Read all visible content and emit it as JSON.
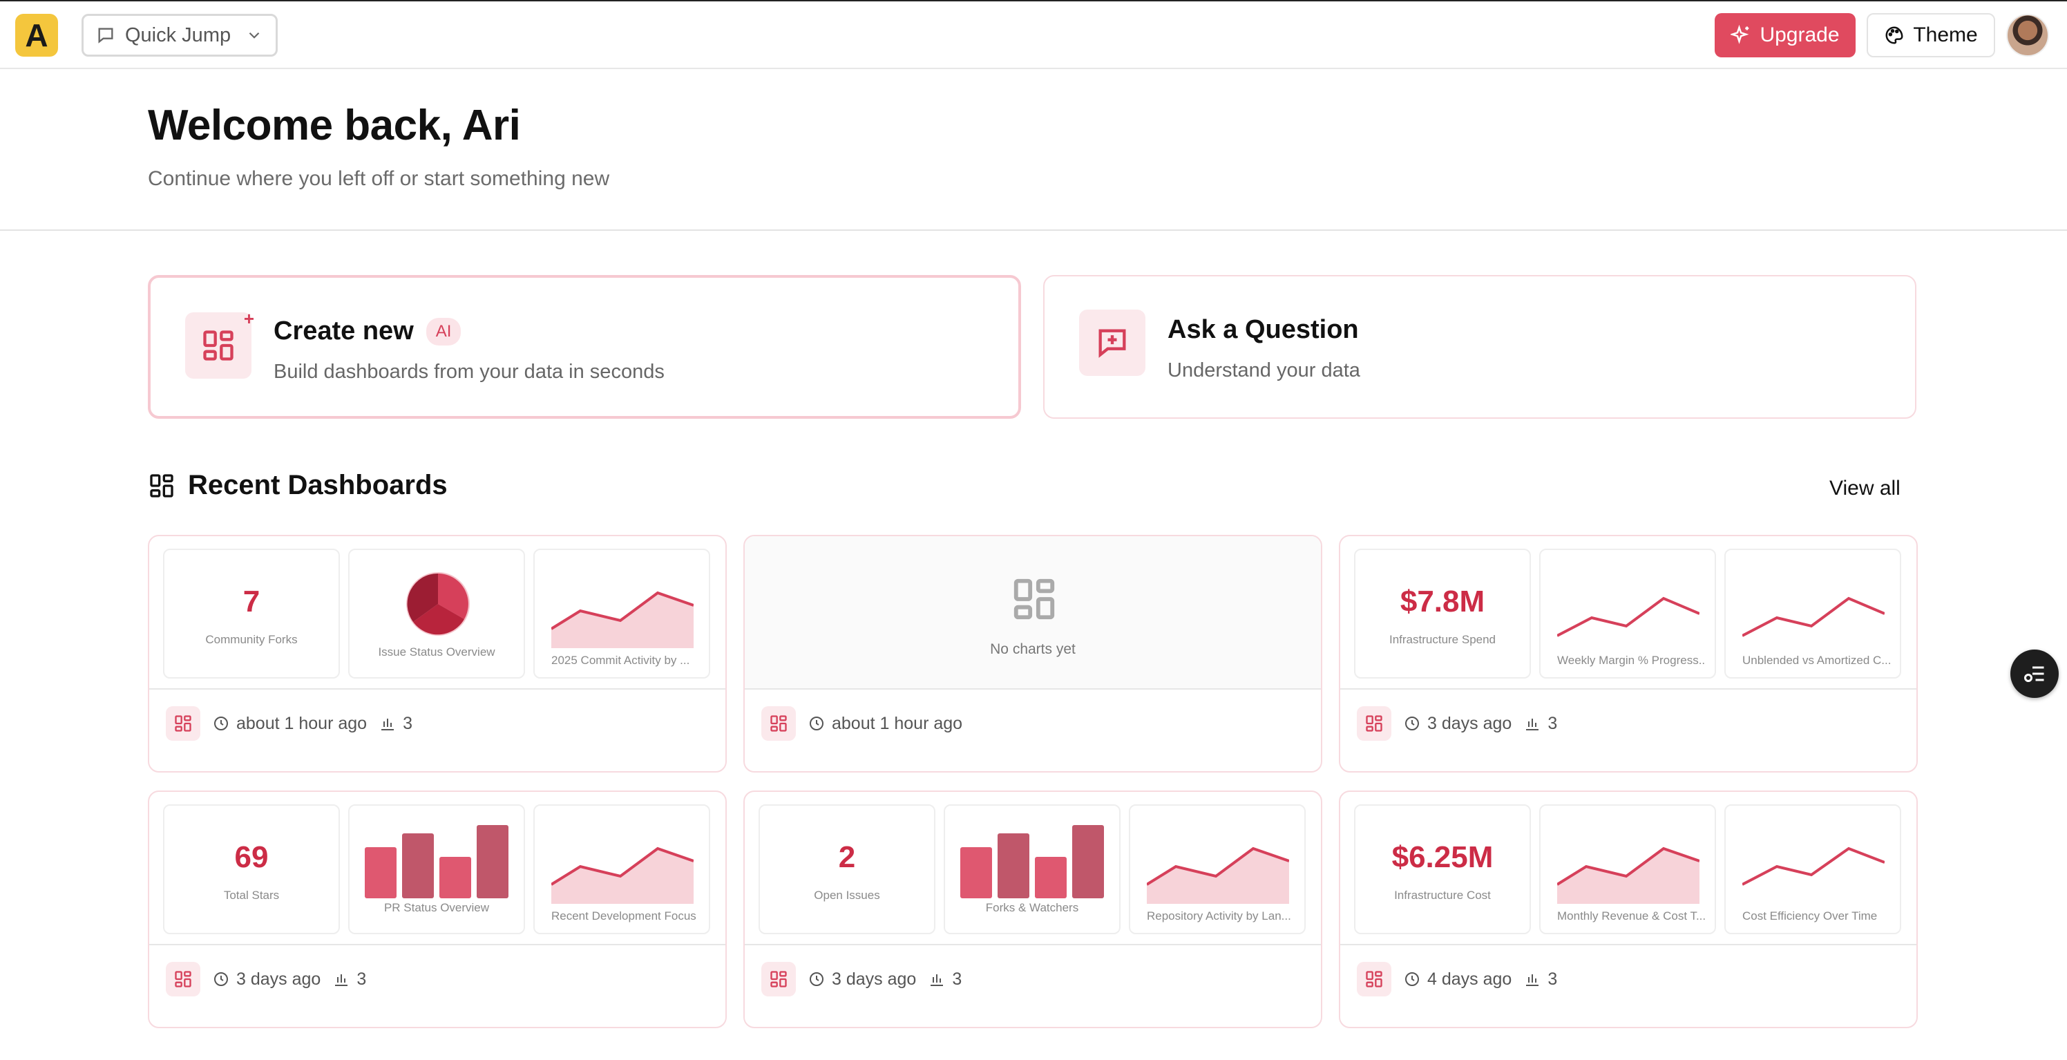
{
  "topbar": {
    "logo_letter": "A",
    "quick_jump_label": "Quick Jump",
    "upgrade_label": "Upgrade",
    "theme_label": "Theme"
  },
  "welcome": {
    "title": "Welcome back, Ari",
    "subtitle": "Continue where you left off or start something new"
  },
  "actions": {
    "create": {
      "title": "Create new",
      "badge": "AI",
      "subtitle": "Build dashboards from your data in seconds"
    },
    "ask": {
      "title": "Ask a Question",
      "subtitle": "Understand your data"
    }
  },
  "recent": {
    "title": "Recent Dashboards",
    "view_all": "View all",
    "dashboards": [
      {
        "tiles": [
          {
            "type": "kpi",
            "value": "7",
            "label": "Community Forks"
          },
          {
            "type": "pie",
            "label": "Issue Status Overview"
          },
          {
            "type": "area",
            "label": "2025 Commit Activity by ..."
          }
        ],
        "time": "about 1 hour ago",
        "count": "3"
      },
      {
        "empty_text": "No charts yet",
        "time": "about 1 hour ago"
      },
      {
        "tiles": [
          {
            "type": "kpi",
            "value": "$7.8M",
            "label": "Infrastructure Spend"
          },
          {
            "type": "line",
            "label": "Weekly Margin % Progress..."
          },
          {
            "type": "line",
            "label": "Unblended vs Amortized C..."
          }
        ],
        "time": "3 days ago",
        "count": "3"
      },
      {
        "tiles": [
          {
            "type": "kpi",
            "value": "69",
            "label": "Total Stars"
          },
          {
            "type": "bar",
            "label": "PR Status Overview"
          },
          {
            "type": "area",
            "label": "Recent Development Focus"
          }
        ],
        "time": "3 days ago",
        "count": "3"
      },
      {
        "tiles": [
          {
            "type": "kpi",
            "value": "2",
            "label": "Open Issues"
          },
          {
            "type": "bar",
            "label": "Forks & Watchers"
          },
          {
            "type": "area",
            "label": "Repository Activity by Lan..."
          }
        ],
        "time": "3 days ago",
        "count": "3"
      },
      {
        "tiles": [
          {
            "type": "kpi",
            "value": "$6.25M",
            "label": "Infrastructure Cost"
          },
          {
            "type": "area",
            "label": "Monthly Revenue & Cost T..."
          },
          {
            "type": "line",
            "label": "Cost Efficiency Over Time"
          }
        ],
        "time": "4 days ago",
        "count": "3"
      }
    ]
  },
  "colors": {
    "accent": "#e04a5f",
    "brand_yellow": "#f4c63d",
    "kpi_red": "#cc2c46"
  }
}
